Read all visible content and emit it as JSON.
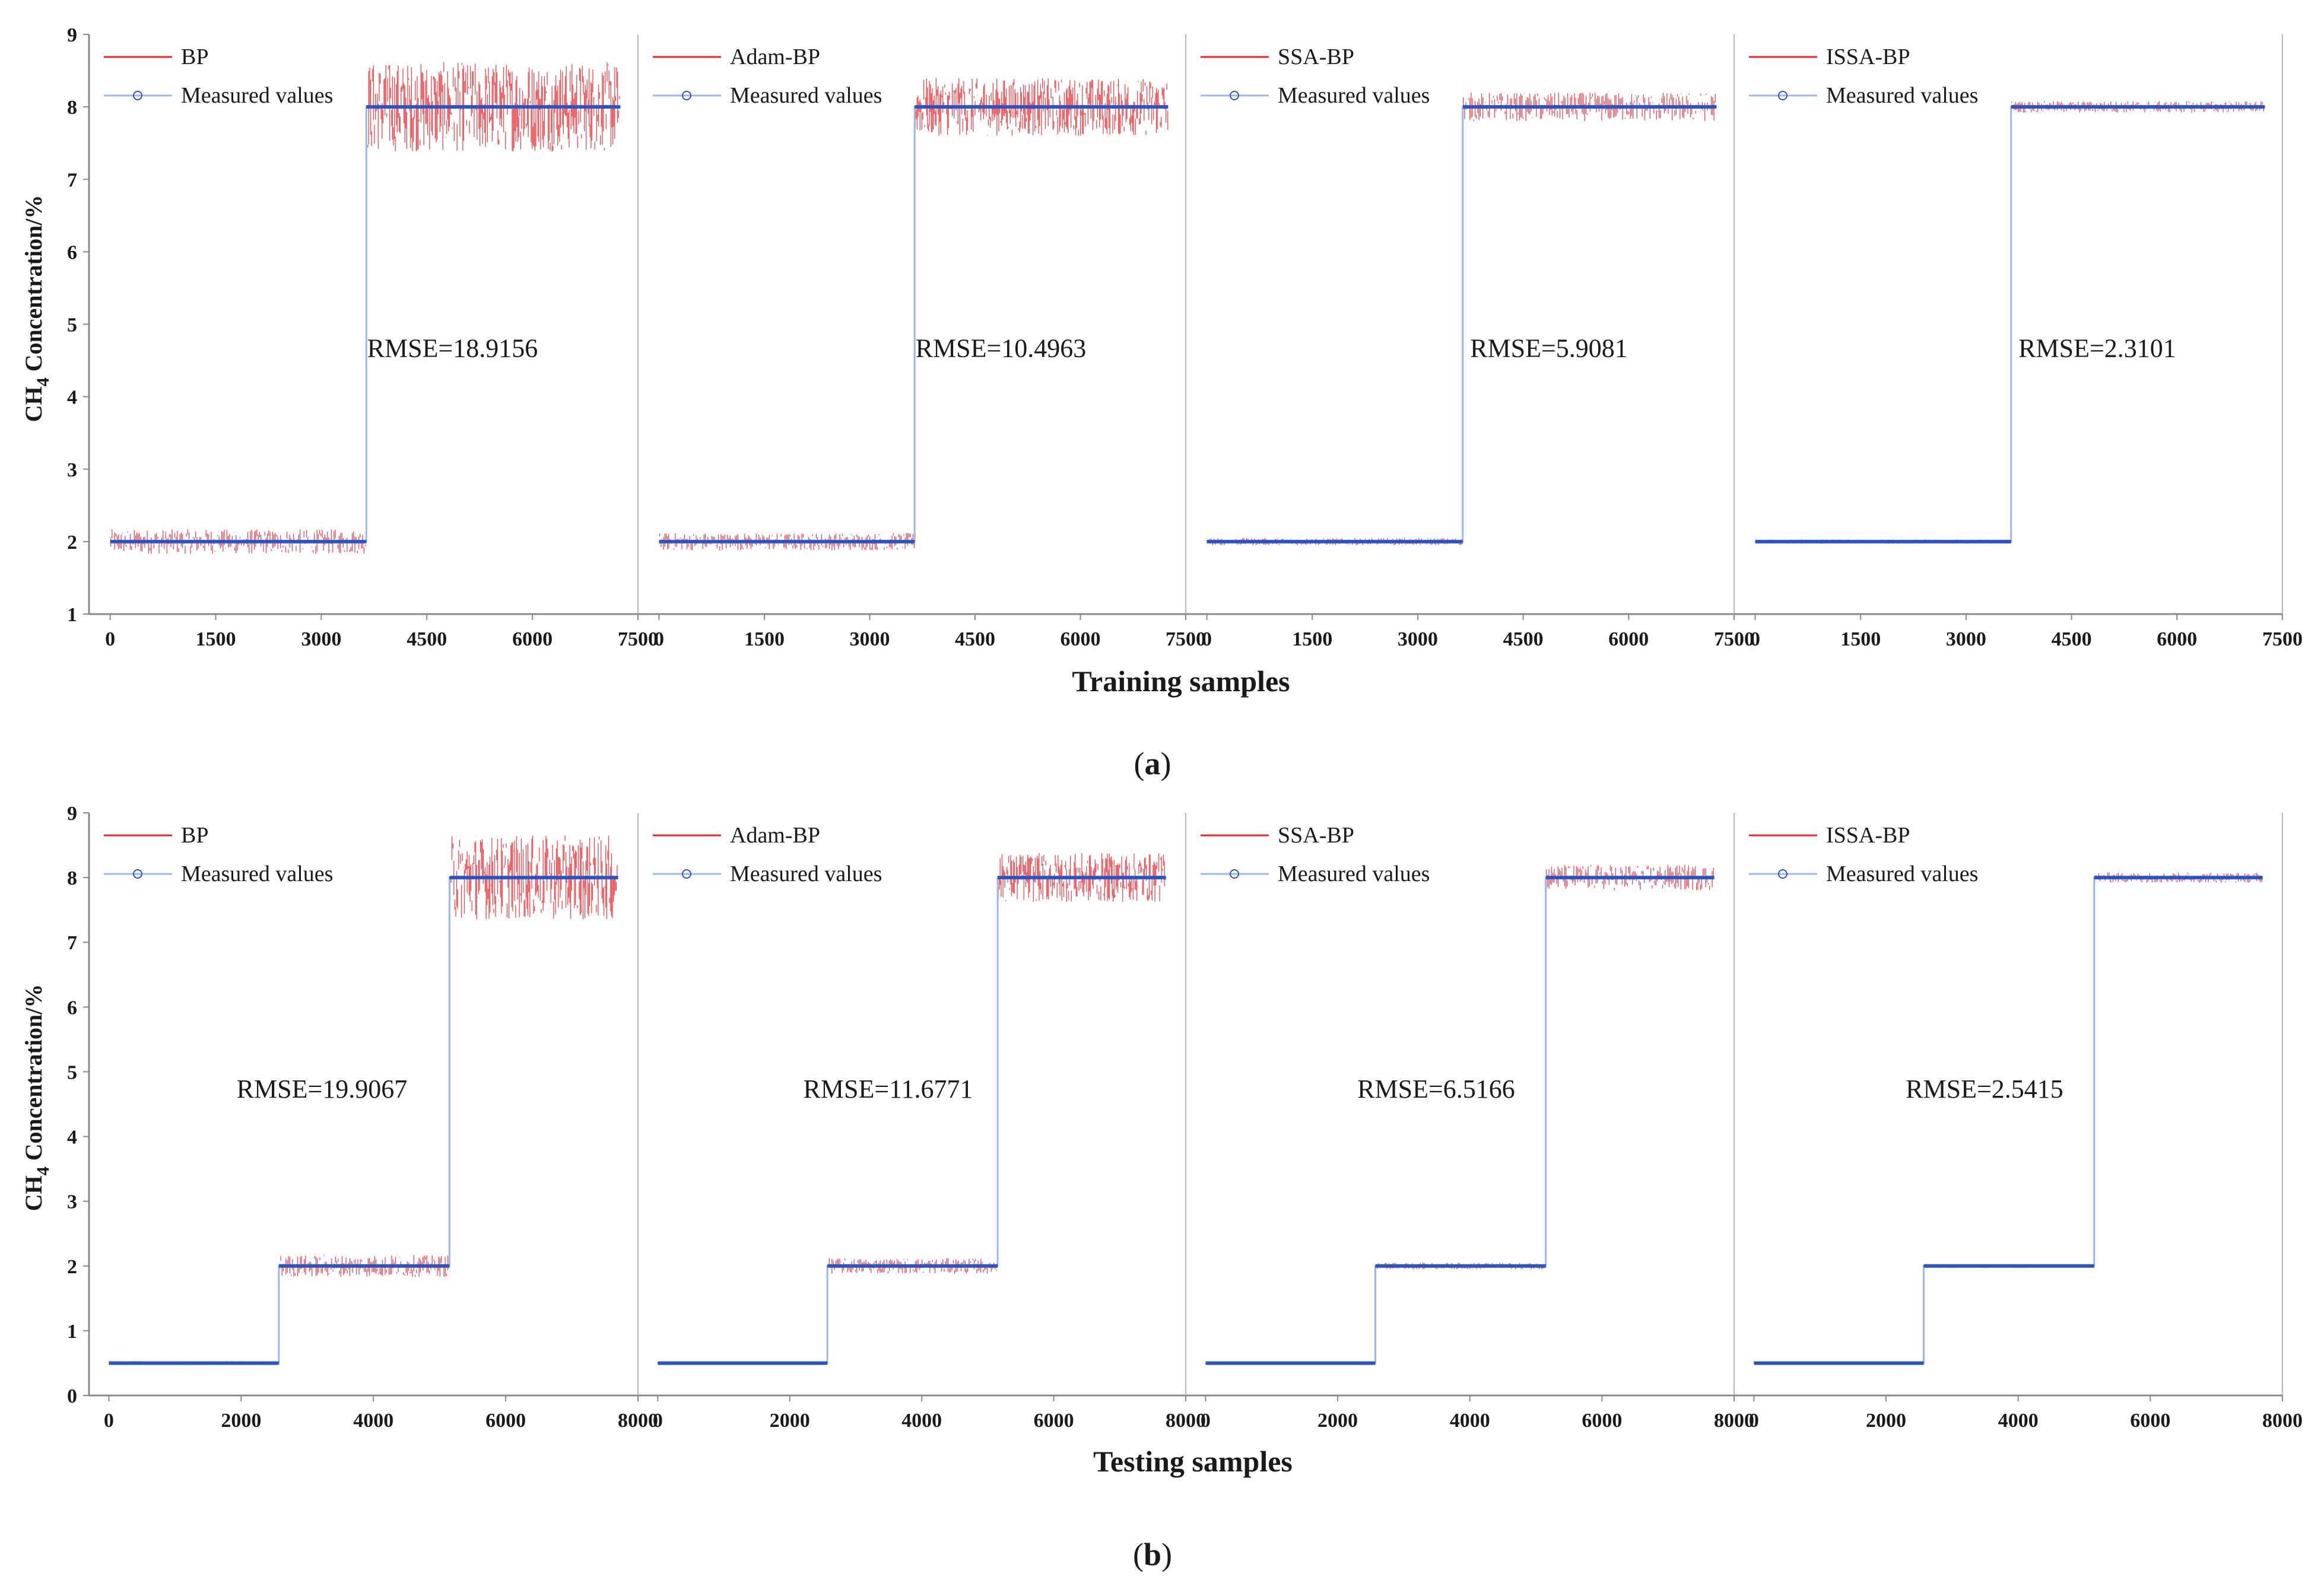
{
  "figure": {
    "y_axis_label": "CH",
    "y_axis_subscript": "4",
    "y_axis_label_rest": " Concentration/%",
    "rows": [
      {
        "tag_open": "(",
        "tag_letter": "a",
        "tag_close": ")",
        "x_axis_label": "Training samples"
      },
      {
        "tag_open": "(",
        "tag_letter": "b",
        "tag_close": ")",
        "x_axis_label": "Testing samples"
      }
    ]
  },
  "colors": {
    "prediction": "#e8262c",
    "measured": "#2b55c4",
    "measured_line": "#9db8e8",
    "axis": "#888888",
    "divider": "#b8b8b8"
  },
  "chart_data": [
    {
      "type": "line",
      "row": "a",
      "model": "BP",
      "xlim": [
        -300,
        7500
      ],
      "ylim": [
        1,
        9
      ],
      "xticks": [
        0,
        1500,
        3000,
        4500,
        6000,
        7500
      ],
      "yticks": [
        1,
        2,
        3,
        4,
        5,
        6,
        7,
        8,
        9
      ],
      "legend": [
        "BP",
        "Measured values"
      ],
      "annotation": "RMSE=18.9156",
      "measured_segments": [
        {
          "x0": 0,
          "x1": 3640,
          "value": 2
        },
        {
          "x0": 3640,
          "x1": 7250,
          "value": 8
        }
      ],
      "prediction_noise_halfwidth": [
        0.17,
        0.62
      ]
    },
    {
      "type": "line",
      "row": "a",
      "model": "Adam-BP",
      "xlim": [
        -300,
        7500
      ],
      "ylim": [
        1,
        9
      ],
      "xticks": [
        0,
        1500,
        3000,
        4500,
        6000,
        7500
      ],
      "yticks": [
        1,
        2,
        3,
        4,
        5,
        6,
        7,
        8,
        9
      ],
      "legend": [
        "Adam-BP",
        "Measured values"
      ],
      "annotation": "RMSE=10.4963",
      "measured_segments": [
        {
          "x0": 0,
          "x1": 3640,
          "value": 2
        },
        {
          "x0": 3640,
          "x1": 7250,
          "value": 8
        }
      ],
      "prediction_noise_halfwidth": [
        0.12,
        0.4
      ]
    },
    {
      "type": "line",
      "row": "a",
      "model": "SSA-BP",
      "xlim": [
        -300,
        7500
      ],
      "ylim": [
        1,
        9
      ],
      "xticks": [
        0,
        1500,
        3000,
        4500,
        6000,
        7500
      ],
      "yticks": [
        1,
        2,
        3,
        4,
        5,
        6,
        7,
        8,
        9
      ],
      "legend": [
        "SSA-BP",
        "Measured values"
      ],
      "annotation": "RMSE=5.9081",
      "measured_segments": [
        {
          "x0": 0,
          "x1": 3640,
          "value": 2
        },
        {
          "x0": 3640,
          "x1": 7250,
          "value": 8
        }
      ],
      "prediction_noise_halfwidth": [
        0.05,
        0.2
      ]
    },
    {
      "type": "line",
      "row": "a",
      "model": "ISSA-BP",
      "xlim": [
        -300,
        7500
      ],
      "ylim": [
        1,
        9
      ],
      "xticks": [
        0,
        1500,
        3000,
        4500,
        6000,
        7500
      ],
      "yticks": [
        1,
        2,
        3,
        4,
        5,
        6,
        7,
        8,
        9
      ],
      "legend": [
        "ISSA-BP",
        "Measured values"
      ],
      "annotation": "RMSE=2.3101",
      "measured_segments": [
        {
          "x0": 0,
          "x1": 3640,
          "value": 2
        },
        {
          "x0": 3640,
          "x1": 7250,
          "value": 8
        }
      ],
      "prediction_noise_halfwidth": [
        0.03,
        0.08
      ]
    },
    {
      "type": "line",
      "row": "b",
      "model": "BP",
      "xlim": [
        -300,
        8000
      ],
      "ylim": [
        0,
        9
      ],
      "xticks": [
        0,
        2000,
        4000,
        6000,
        8000
      ],
      "yticks": [
        0,
        1,
        2,
        3,
        4,
        5,
        6,
        7,
        8,
        9
      ],
      "legend": [
        "BP",
        "Measured values"
      ],
      "annotation": "RMSE=19.9067",
      "measured_segments": [
        {
          "x0": 0,
          "x1": 2570,
          "value": 0.5
        },
        {
          "x0": 2570,
          "x1": 5150,
          "value": 2
        },
        {
          "x0": 5150,
          "x1": 7700,
          "value": 8
        }
      ],
      "prediction_noise_halfwidth": [
        0.03,
        0.17,
        0.65
      ]
    },
    {
      "type": "line",
      "row": "b",
      "model": "Adam-BP",
      "xlim": [
        -300,
        8000
      ],
      "ylim": [
        0,
        9
      ],
      "xticks": [
        0,
        2000,
        4000,
        6000,
        8000
      ],
      "yticks": [
        0,
        1,
        2,
        3,
        4,
        5,
        6,
        7,
        8,
        9
      ],
      "legend": [
        "Adam-BP",
        "Measured values"
      ],
      "annotation": "RMSE=11.6771",
      "measured_segments": [
        {
          "x0": 0,
          "x1": 2570,
          "value": 0.5
        },
        {
          "x0": 2570,
          "x1": 5150,
          "value": 2
        },
        {
          "x0": 5150,
          "x1": 7700,
          "value": 8
        }
      ],
      "prediction_noise_halfwidth": [
        0.02,
        0.12,
        0.38
      ]
    },
    {
      "type": "line",
      "row": "b",
      "model": "SSA-BP",
      "xlim": [
        -300,
        8000
      ],
      "ylim": [
        0,
        9
      ],
      "xticks": [
        0,
        2000,
        4000,
        6000,
        8000
      ],
      "yticks": [
        0,
        1,
        2,
        3,
        4,
        5,
        6,
        7,
        8,
        9
      ],
      "legend": [
        "SSA-BP",
        "Measured values"
      ],
      "annotation": "RMSE=6.5166",
      "measured_segments": [
        {
          "x0": 0,
          "x1": 2570,
          "value": 0.5
        },
        {
          "x0": 2570,
          "x1": 5150,
          "value": 2
        },
        {
          "x0": 5150,
          "x1": 7700,
          "value": 8
        }
      ],
      "prediction_noise_halfwidth": [
        0.01,
        0.05,
        0.2
      ]
    },
    {
      "type": "line",
      "row": "b",
      "model": "ISSA-BP",
      "xlim": [
        -300,
        8000
      ],
      "ylim": [
        0,
        9
      ],
      "xticks": [
        0,
        2000,
        4000,
        6000,
        8000
      ],
      "yticks": [
        0,
        1,
        2,
        3,
        4,
        5,
        6,
        7,
        8,
        9
      ],
      "legend": [
        "ISSA-BP",
        "Measured values"
      ],
      "annotation": "RMSE=2.5415",
      "measured_segments": [
        {
          "x0": 0,
          "x1": 2570,
          "value": 0.5
        },
        {
          "x0": 2570,
          "x1": 5150,
          "value": 2
        },
        {
          "x0": 5150,
          "x1": 7700,
          "value": 8
        }
      ],
      "prediction_noise_halfwidth": [
        0.01,
        0.03,
        0.08
      ]
    }
  ]
}
